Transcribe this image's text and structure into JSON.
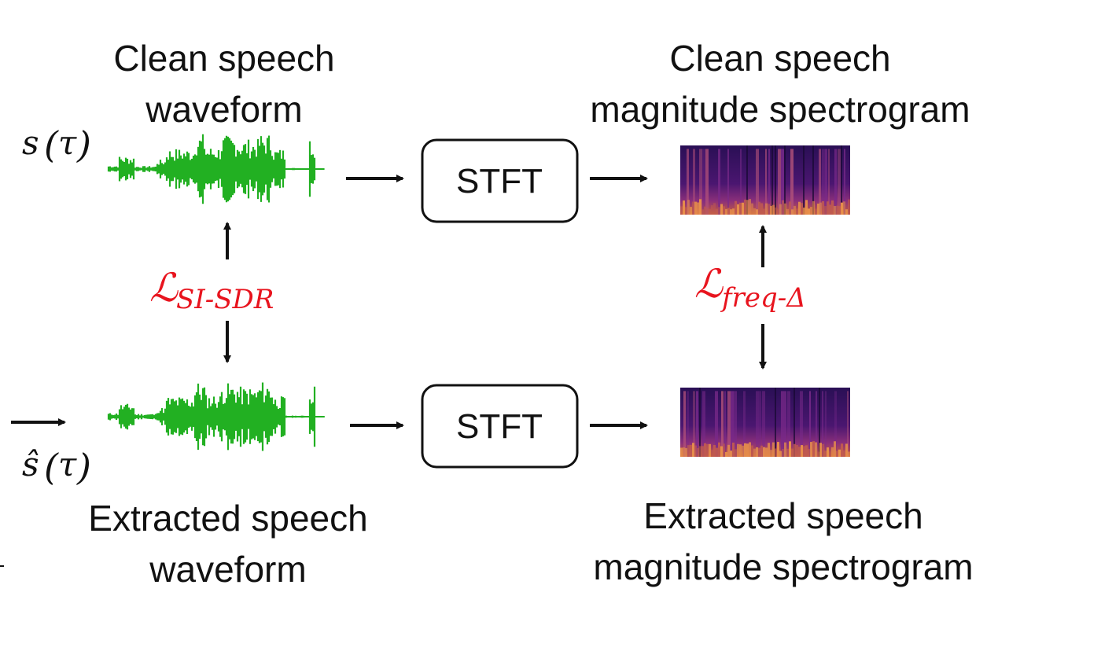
{
  "top": {
    "waveform_label": [
      "Clean speech",
      "waveform"
    ],
    "spectrogram_label": [
      "Clean speech",
      "magnitude spectrogram"
    ],
    "signal": {
      "base": "s",
      "arg": "τ"
    },
    "stft": "STFT"
  },
  "bottom": {
    "waveform_label": [
      "Extracted speech",
      "waveform"
    ],
    "spectrogram_label": [
      "Extracted speech",
      "magnitude spectrogram"
    ],
    "signal": {
      "base": "ŝ",
      "arg": "τ"
    },
    "stft": "STFT"
  },
  "losses": {
    "time": {
      "symbol": "ℒ",
      "subscript": "SI-SDR"
    },
    "freq": {
      "symbol": "ℒ",
      "subscript": "freq-Δ"
    }
  },
  "colors": {
    "waveform": "#22b022",
    "loss": "#e8141e",
    "spec_dark": "#2a0f55",
    "spec_mid": "#7a2a8a",
    "spec_hot": "#e08040"
  }
}
